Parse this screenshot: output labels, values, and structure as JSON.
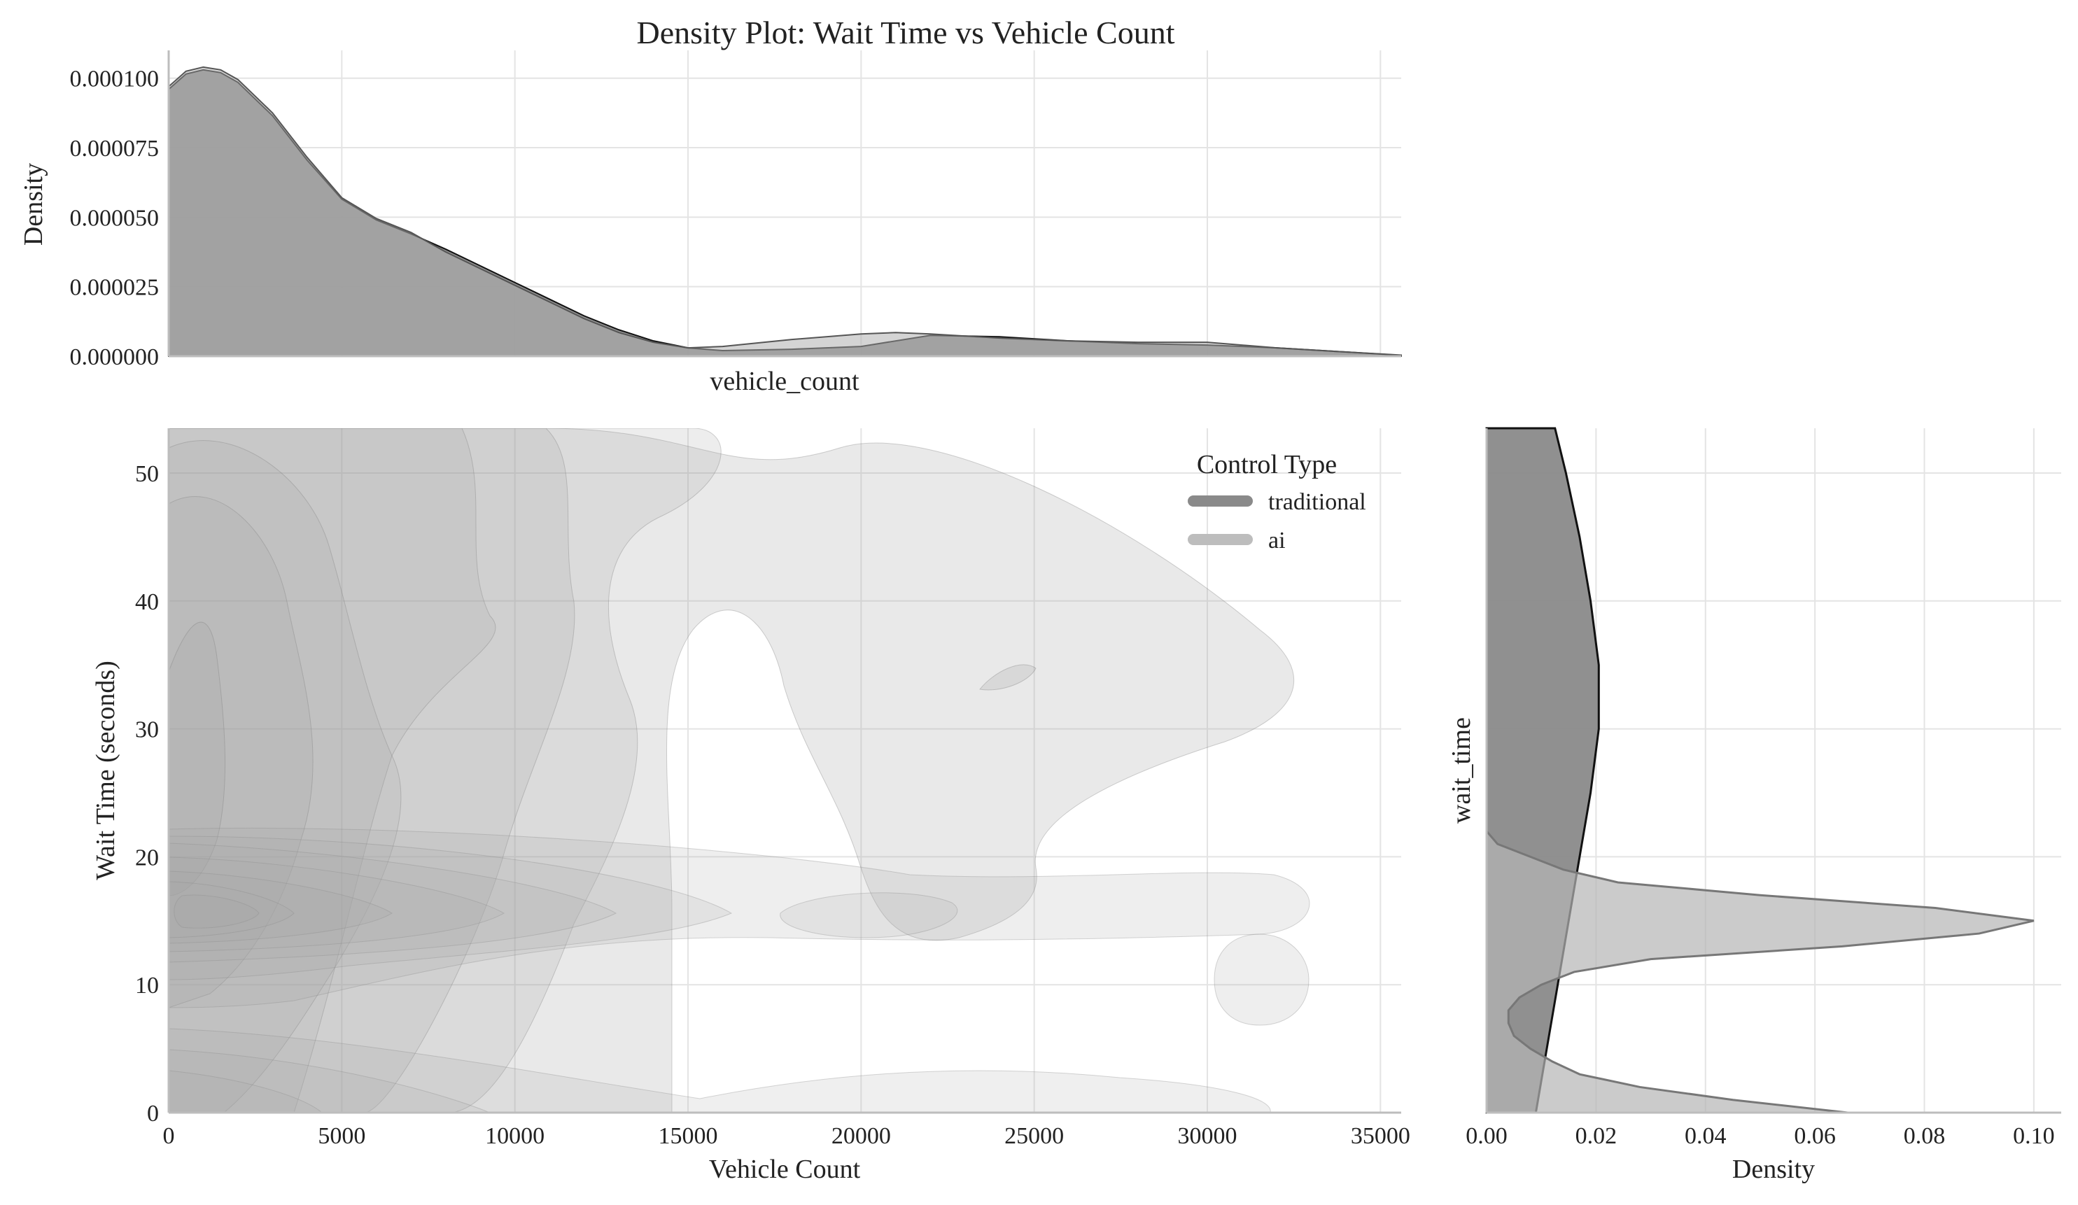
{
  "chart_data": [
    {
      "panel": "top-marginal",
      "type": "area",
      "title": "Density Plot: Wait Time vs Vehicle Count",
      "xlabel": "vehicle_count",
      "ylabel": "Density",
      "xlim": [
        0,
        35600
      ],
      "ylim": [
        0,
        0.00011
      ],
      "yticks": [
        0.0,
        2.5e-05,
        5e-05,
        7.5e-05,
        0.0001
      ],
      "ytick_labels": [
        "0.000000",
        "0.000025",
        "0.000050",
        "0.000075",
        "0.000100"
      ],
      "grid": true,
      "series": [
        {
          "name": "traditional",
          "color": "#8a8a8a",
          "x": [
            0,
            500,
            1000,
            1500,
            2000,
            3000,
            4000,
            5000,
            6000,
            7000,
            8000,
            9000,
            10000,
            11000,
            12000,
            13000,
            14000,
            15000,
            16000,
            18000,
            20000,
            22000,
            24000,
            26000,
            28000,
            30000,
            32000,
            34000,
            35600
          ],
          "y": [
            9.6e-05,
            0.0001015,
            0.000103,
            0.000102,
            9.85e-05,
            8.65e-05,
            7.05e-05,
            5.65e-05,
            4.9e-05,
            4.4e-05,
            3.85e-05,
            3.25e-05,
            2.65e-05,
            2.05e-05,
            1.45e-05,
            9.5e-06,
            5.5e-06,
            3e-06,
            2e-06,
            2.5e-06,
            3.5e-06,
            7.5e-06,
            7e-06,
            5.5e-06,
            4.5e-06,
            4e-06,
            3e-06,
            1.5e-06,
            3e-07
          ]
        },
        {
          "name": "ai",
          "color": "#b5b5b5",
          "x": [
            0,
            500,
            1000,
            1500,
            2000,
            3000,
            4000,
            5000,
            6000,
            7000,
            8000,
            9000,
            10000,
            11000,
            12000,
            13000,
            14000,
            15000,
            16000,
            18000,
            20000,
            21000,
            22000,
            24000,
            26000,
            28000,
            30000,
            32000,
            34000,
            35600
          ],
          "y": [
            9.7e-05,
            0.0001025,
            0.000104,
            0.000103,
            9.95e-05,
            8.75e-05,
            7.15e-05,
            5.7e-05,
            4.95e-05,
            4.45e-05,
            3.75e-05,
            3.15e-05,
            2.55e-05,
            1.95e-05,
            1.35e-05,
            8.5e-06,
            5e-06,
            3e-06,
            3.5e-06,
            6e-06,
            8e-06,
            8.5e-06,
            8e-06,
            6.5e-06,
            5.5e-06,
            5e-06,
            5e-06,
            3e-06,
            1.5e-06,
            4e-07
          ]
        }
      ]
    },
    {
      "panel": "main-joint",
      "type": "area",
      "xlabel": "Vehicle Count",
      "ylabel": "Wait Time (seconds)",
      "xlim": [
        0,
        35600
      ],
      "ylim": [
        0,
        53.5
      ],
      "xticks": [
        0,
        5000,
        10000,
        15000,
        20000,
        25000,
        30000,
        35000
      ],
      "yticks": [
        0,
        10,
        20,
        30,
        40,
        50
      ],
      "grid": true,
      "legend": {
        "title": "Control Type",
        "placement": "upper-right",
        "entries": [
          {
            "label": "traditional",
            "color": "#8a8a8a"
          },
          {
            "label": "ai",
            "color": "#bdbdbd"
          }
        ]
      },
      "series": [
        {
          "name": "traditional",
          "kind": "kde-contour",
          "wait_time_range": [
            0,
            53.5
          ],
          "vehicle_count_range": [
            0,
            33000
          ],
          "peak": {
            "x": 1000,
            "y": 30
          }
        },
        {
          "name": "ai",
          "kind": "kde-contour",
          "wait_time_range": [
            0,
            22
          ],
          "vehicle_count_range": [
            0,
            33000
          ],
          "peak": {
            "x": 1000,
            "y": 15
          }
        }
      ]
    },
    {
      "panel": "right-marginal",
      "type": "area",
      "xlabel": "Density",
      "ylabel": "wait_time",
      "xlim": [
        0,
        0.105
      ],
      "ylim": [
        0,
        53.5
      ],
      "xticks": [
        0.0,
        0.02,
        0.04,
        0.06,
        0.08,
        0.1
      ],
      "xtick_labels": [
        "0.00",
        "0.02",
        "0.04",
        "0.06",
        "0.08",
        "0.10"
      ],
      "grid": true,
      "series": [
        {
          "name": "traditional",
          "color": "#8a8a8a",
          "wait_time": [
            0,
            5,
            10,
            15,
            20,
            25,
            30,
            35,
            40,
            45,
            50,
            53.5
          ],
          "density": [
            0.009,
            0.011,
            0.013,
            0.015,
            0.017,
            0.019,
            0.0205,
            0.0205,
            0.019,
            0.017,
            0.0145,
            0.0125
          ]
        },
        {
          "name": "ai",
          "color": "#b5b5b5",
          "wait_time": [
            0,
            1,
            2,
            3,
            4,
            5,
            6,
            7,
            8,
            9,
            10,
            11,
            12,
            13,
            14,
            15,
            16,
            17,
            18,
            19,
            20,
            21,
            22
          ],
          "density": [
            0.066,
            0.045,
            0.028,
            0.017,
            0.012,
            0.008,
            0.005,
            0.004,
            0.004,
            0.006,
            0.01,
            0.016,
            0.03,
            0.065,
            0.09,
            0.1,
            0.082,
            0.05,
            0.024,
            0.014,
            0.008,
            0.002,
            0.0
          ]
        }
      ]
    }
  ]
}
